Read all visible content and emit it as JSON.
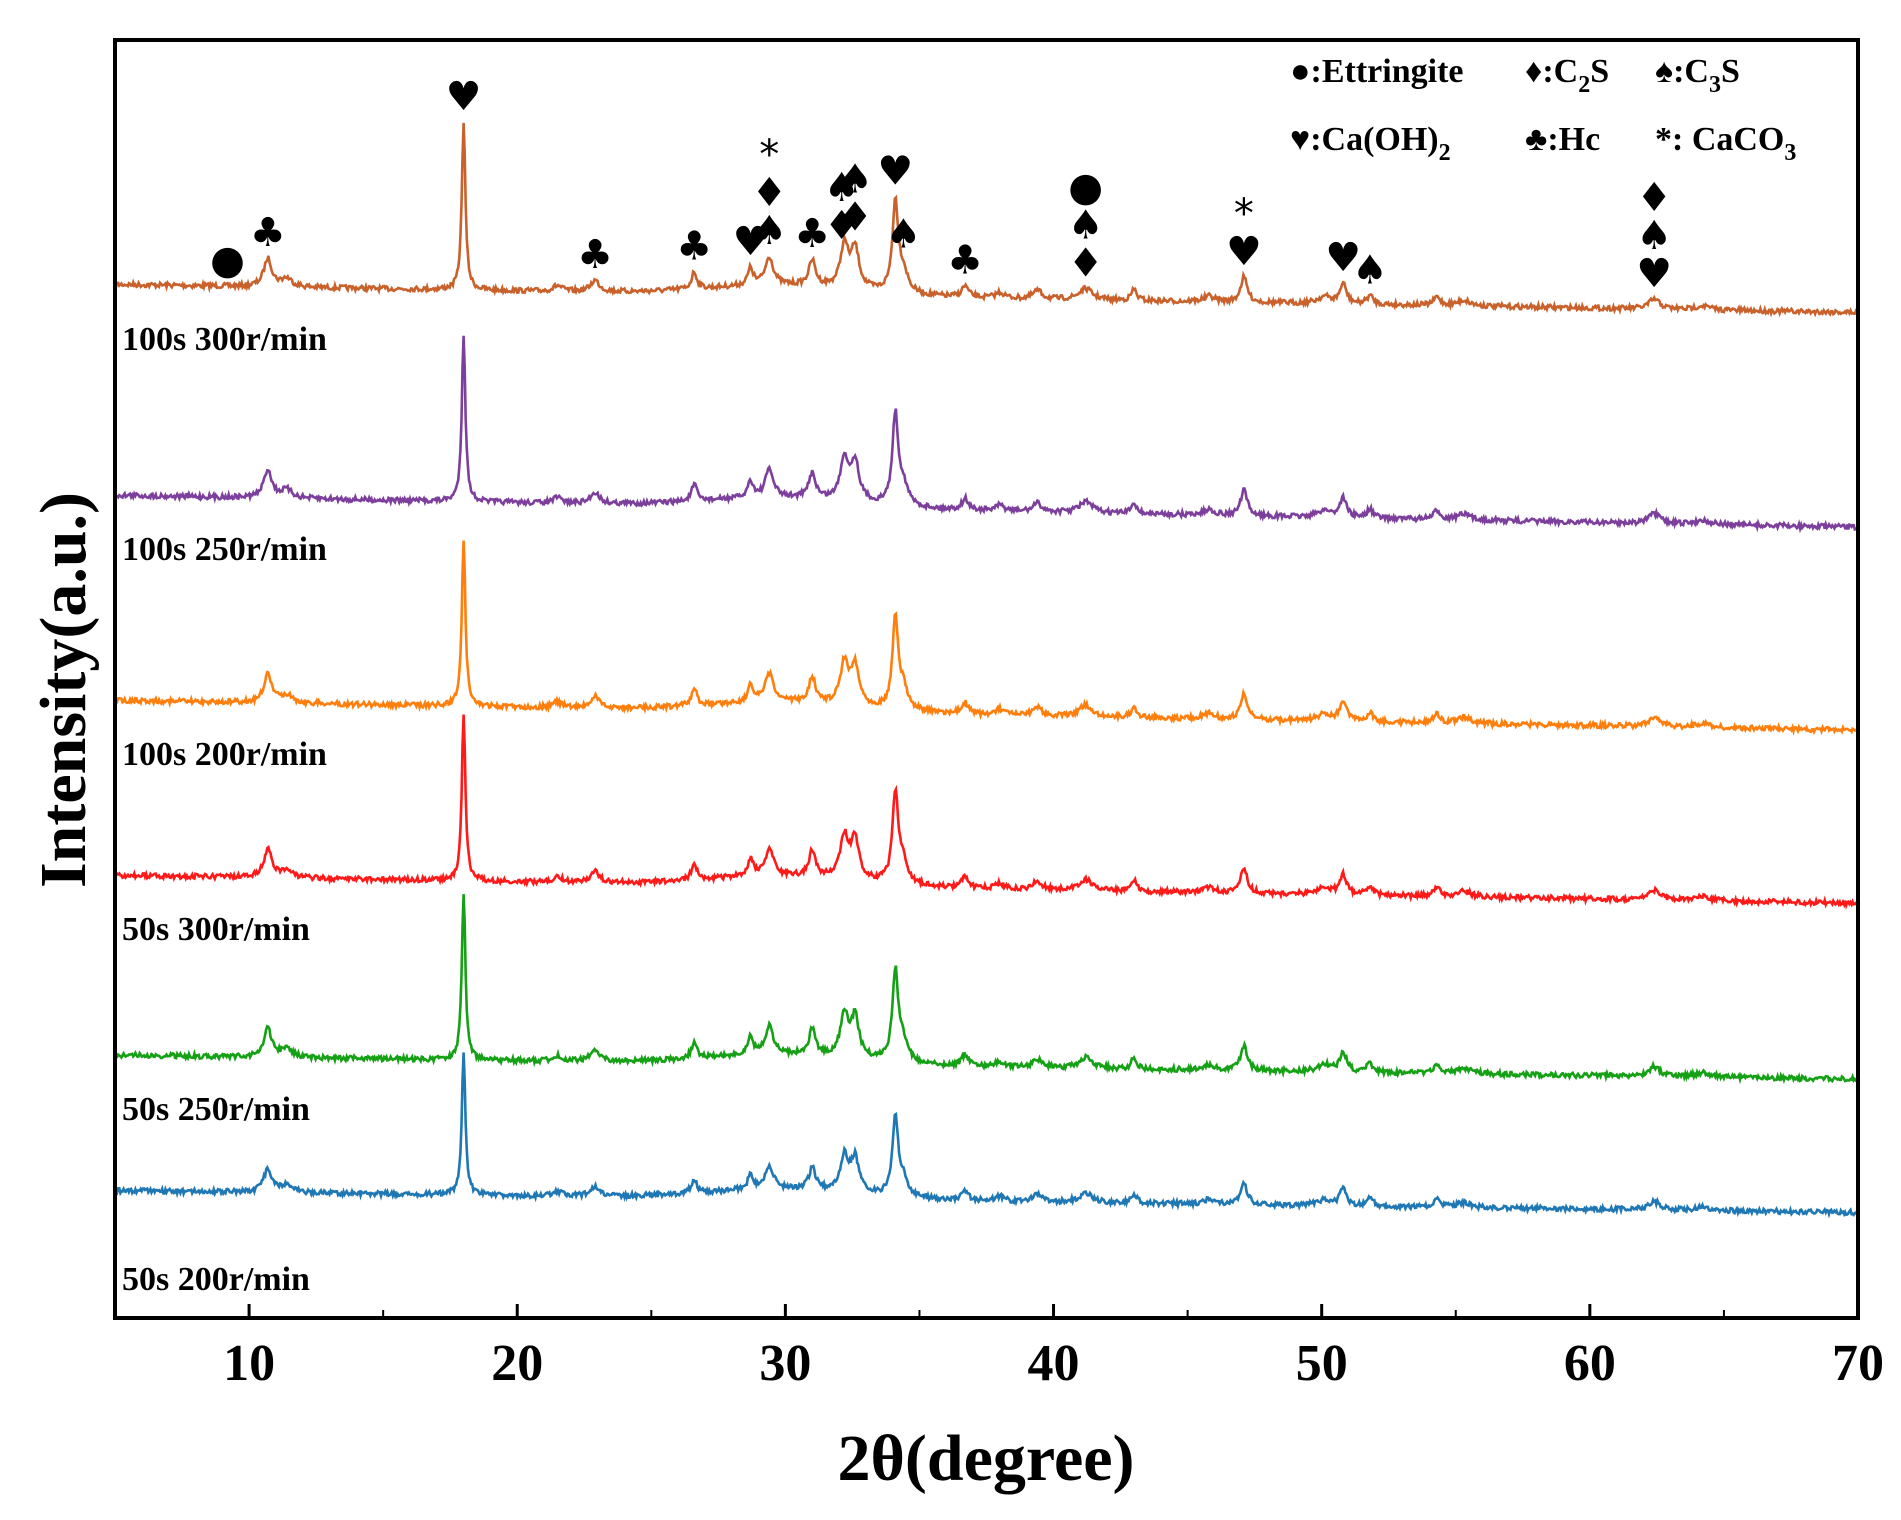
{
  "chart_data": {
    "type": "line",
    "title": "",
    "xlabel": "2θ(degree)",
    "ylabel": "Intensity(a.u.)",
    "xlim": [
      5,
      70
    ],
    "xticks": [
      10,
      20,
      30,
      40,
      50,
      60,
      70
    ],
    "yticks": "none",
    "legend": {
      "placement": "top-right",
      "rows": [
        [
          {
            "symbol": "●",
            "name": "Ettringite"
          },
          {
            "symbol": "♦",
            "name": "C",
            "sub": "2",
            "tail": "S"
          },
          {
            "symbol": "♠",
            "name": "C",
            "sub": "3",
            "tail": "S"
          }
        ],
        [
          {
            "symbol": "♥",
            "name": "Ca(OH)",
            "sub": "2",
            "tail": ""
          },
          {
            "symbol": "♣",
            "name": "Hc",
            "sub": "",
            "tail": ""
          },
          {
            "symbol": "*",
            "name": "  CaCO",
            "sub": "3",
            "tail": ""
          }
        ]
      ]
    },
    "peaks": [
      {
        "x": 10.7,
        "h": 1.0,
        "w": 0.18
      },
      {
        "x": 11.4,
        "h": 0.3,
        "w": 0.25
      },
      {
        "x": 18.0,
        "h": 6.0,
        "w": 0.08
      },
      {
        "x": 21.5,
        "h": 0.2,
        "w": 0.2
      },
      {
        "x": 22.9,
        "h": 0.4,
        "w": 0.2
      },
      {
        "x": 26.6,
        "h": 0.6,
        "w": 0.12
      },
      {
        "x": 28.7,
        "h": 0.6,
        "w": 0.12
      },
      {
        "x": 29.4,
        "h": 1.0,
        "w": 0.18
      },
      {
        "x": 31.0,
        "h": 0.9,
        "w": 0.15
      },
      {
        "x": 32.2,
        "h": 1.5,
        "w": 0.18
      },
      {
        "x": 32.6,
        "h": 1.4,
        "w": 0.18
      },
      {
        "x": 34.1,
        "h": 3.2,
        "w": 0.13
      },
      {
        "x": 34.4,
        "h": 0.7,
        "w": 0.2
      },
      {
        "x": 36.7,
        "h": 0.4,
        "w": 0.15
      },
      {
        "x": 38.0,
        "h": 0.2,
        "w": 0.2
      },
      {
        "x": 39.4,
        "h": 0.3,
        "w": 0.2
      },
      {
        "x": 41.2,
        "h": 0.4,
        "w": 0.3
      },
      {
        "x": 43.0,
        "h": 0.4,
        "w": 0.12
      },
      {
        "x": 45.8,
        "h": 0.2,
        "w": 0.25
      },
      {
        "x": 47.1,
        "h": 0.9,
        "w": 0.15
      },
      {
        "x": 50.1,
        "h": 0.25,
        "w": 0.3
      },
      {
        "x": 50.8,
        "h": 0.7,
        "w": 0.15
      },
      {
        "x": 51.8,
        "h": 0.3,
        "w": 0.15
      },
      {
        "x": 54.3,
        "h": 0.3,
        "w": 0.15
      },
      {
        "x": 55.3,
        "h": 0.2,
        "w": 0.3
      },
      {
        "x": 62.4,
        "h": 0.35,
        "w": 0.25
      },
      {
        "x": 64.2,
        "h": 0.15,
        "w": 0.3
      }
    ],
    "series": [
      {
        "name": "100s 300r/min",
        "color": "#c8612b",
        "baseline": 1.0,
        "amp": 1.0
      },
      {
        "name": "100s 250r/min",
        "color": "#7d3f9c",
        "baseline": 0.85,
        "amp": 1.0
      },
      {
        "name": "100s 200r/min",
        "color": "#ff7f0e",
        "baseline": 0.85,
        "amp": 1.0
      },
      {
        "name": "50s 300r/min",
        "color": "#ff1a1a",
        "baseline": 0.85,
        "amp": 1.0
      },
      {
        "name": "50s 250r/min",
        "color": "#16a016",
        "baseline": 0.85,
        "amp": 1.0
      },
      {
        "name": "50s 200r/min",
        "color": "#1f77b4",
        "baseline": 0.8,
        "amp": 0.85
      }
    ],
    "annotations": [
      {
        "x": 9.2,
        "symbols": [
          "●"
        ]
      },
      {
        "x": 10.7,
        "symbols": [
          "♣"
        ]
      },
      {
        "x": 18.0,
        "symbols": [
          "♥"
        ]
      },
      {
        "x": 22.9,
        "symbols": [
          "♣"
        ]
      },
      {
        "x": 26.6,
        "symbols": [
          "♣"
        ]
      },
      {
        "x": 28.7,
        "symbols": [
          "♥"
        ]
      },
      {
        "x": 29.4,
        "symbols": [
          "*",
          "♦",
          "♠"
        ]
      },
      {
        "x": 31.0,
        "symbols": [
          "♣"
        ]
      },
      {
        "x": 32.1,
        "symbols": [
          "♠",
          "♦"
        ]
      },
      {
        "x": 32.6,
        "symbols": [
          "♠",
          "♦"
        ]
      },
      {
        "x": 34.1,
        "symbols": [
          "♥"
        ]
      },
      {
        "x": 34.4,
        "symbols": [
          "♠"
        ]
      },
      {
        "x": 36.7,
        "symbols": [
          "♣"
        ]
      },
      {
        "x": 41.2,
        "symbols": [
          "●",
          "♠",
          "♦"
        ]
      },
      {
        "x": 47.1,
        "symbols": [
          "*",
          "♥"
        ]
      },
      {
        "x": 50.8,
        "symbols": [
          "♥"
        ]
      },
      {
        "x": 51.8,
        "symbols": [
          "♠"
        ]
      },
      {
        "x": 62.4,
        "symbols": [
          "♦",
          "♠",
          "♥"
        ]
      }
    ]
  }
}
